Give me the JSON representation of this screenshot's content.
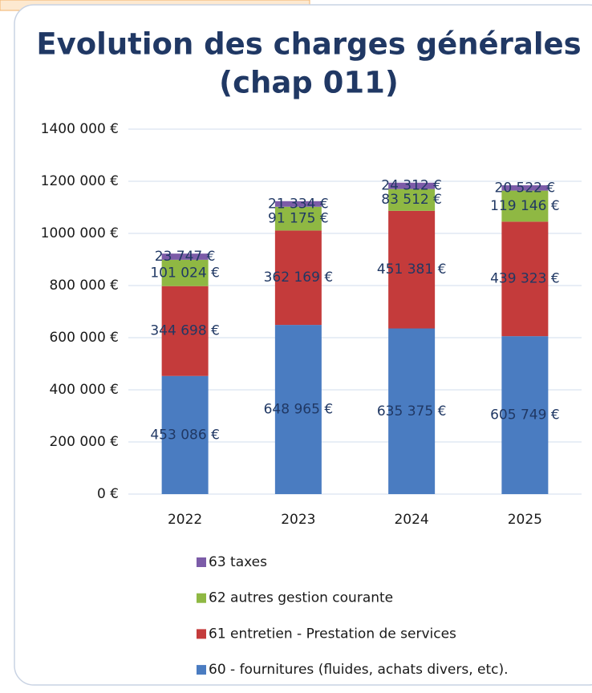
{
  "chart_data": {
    "type": "stacked_bar",
    "title": [
      "Evolution des charges générales",
      "(chap 011)"
    ],
    "categories": [
      "2022",
      "2023",
      "2024",
      "2025"
    ],
    "series": [
      {
        "name": "60 - fournitures (fluides, achats divers, etc).",
        "color": "#4a7cc1",
        "values": [
          453086,
          648965,
          635375,
          605749
        ],
        "value_labels": [
          "453 086 €",
          "648 965 €",
          "635 375 €",
          "605 749 €"
        ]
      },
      {
        "name": "61 entretien - Prestation de services",
        "color": "#c43b3b",
        "values": [
          344698,
          362169,
          451381,
          439323
        ],
        "value_labels": [
          "344 698 €",
          "362 169 €",
          "451 381 €",
          "439 323 €"
        ]
      },
      {
        "name": "62 autres gestion courante",
        "color": "#8fb843",
        "values": [
          101024,
          91175,
          83512,
          119146
        ],
        "value_labels": [
          "101 024 €",
          "91 175 €",
          "83 512 €",
          "119 146 €"
        ]
      },
      {
        "name": "63 taxes",
        "color": "#7c5ca8",
        "values": [
          23747,
          21334,
          24312,
          20522
        ],
        "value_labels": [
          "23 747 €",
          "21 334 €",
          "24 312 €",
          "20 522 €"
        ]
      }
    ],
    "ylim": [
      0,
      1400000
    ],
    "yticks": [
      {
        "value": 0,
        "label": "0 €"
      },
      {
        "value": 200000,
        "label": "200 000 €"
      },
      {
        "value": 400000,
        "label": "400 000 €"
      },
      {
        "value": 600000,
        "label": "600 000 €"
      },
      {
        "value": 800000,
        "label": "800 000 €"
      },
      {
        "value": 1000000,
        "label": "1000 000 €"
      },
      {
        "value": 1200000,
        "label": "1200 000 €"
      },
      {
        "value": 1400000,
        "label": "1400 000 €"
      }
    ],
    "grid": true
  }
}
